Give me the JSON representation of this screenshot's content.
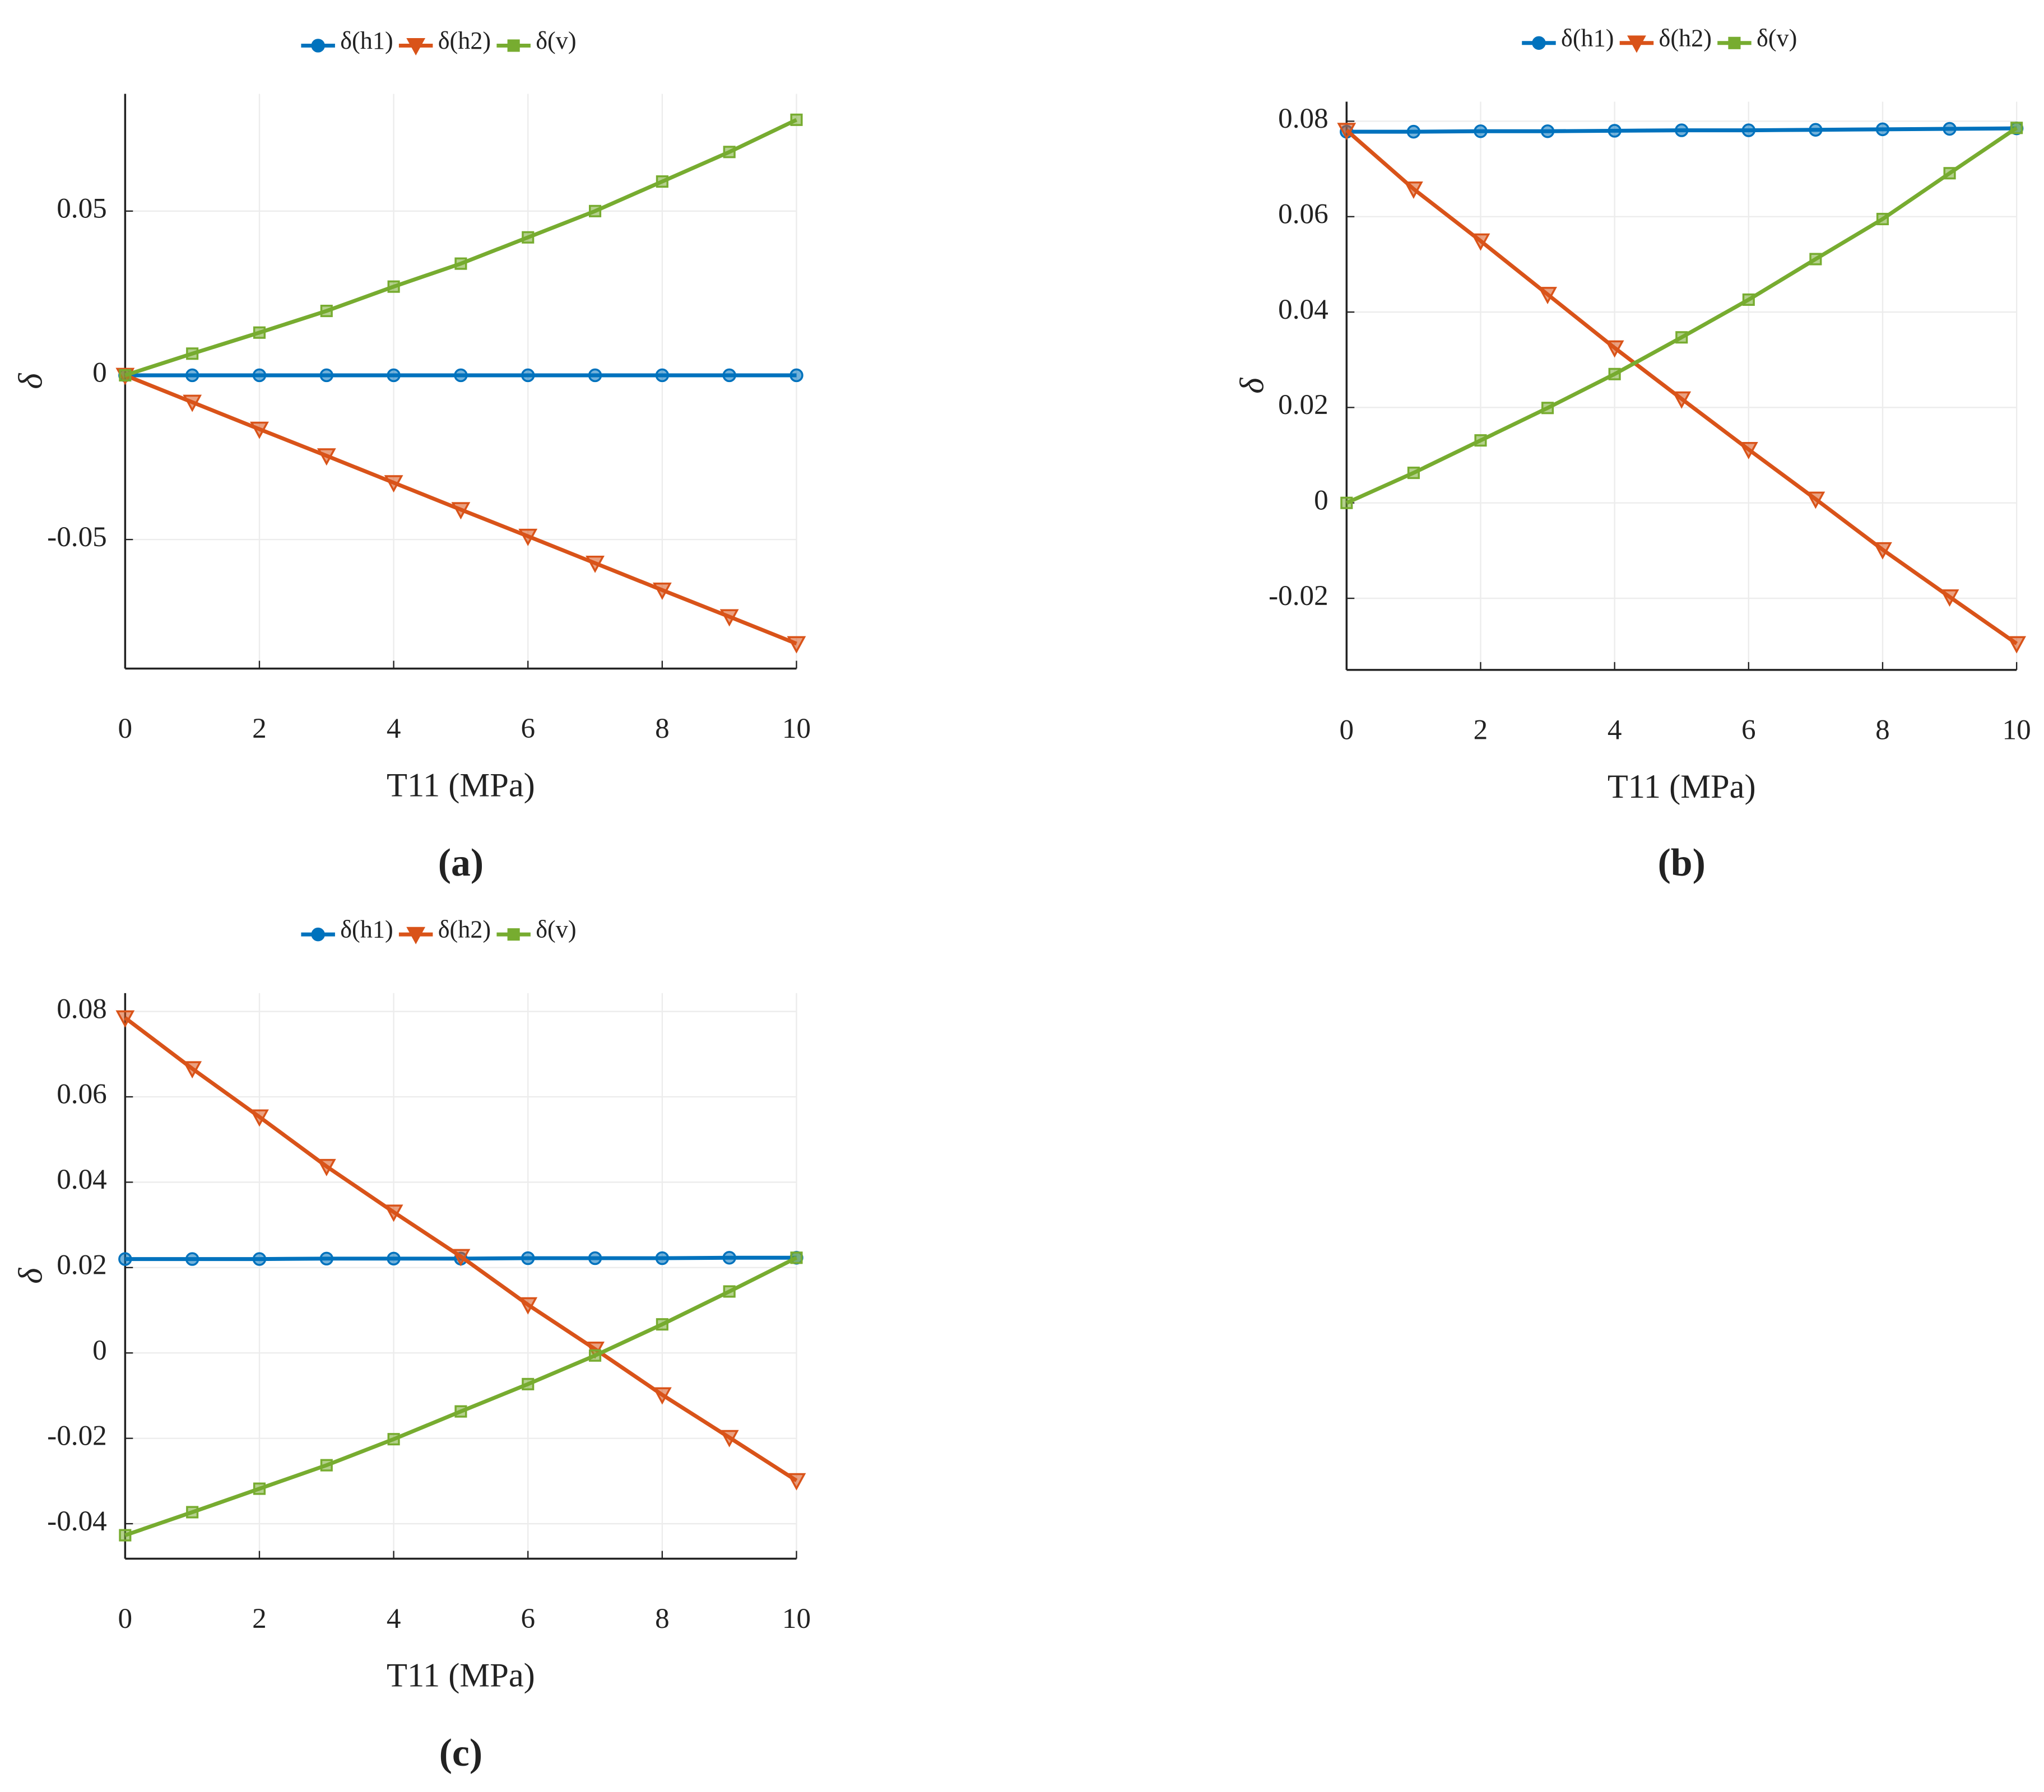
{
  "chart_data": [
    {
      "type": "line",
      "caption": "(a)",
      "xlabel": "T11 (MPa)",
      "ylabel": "δ",
      "x": [
        0,
        1,
        2,
        3,
        4,
        5,
        6,
        7,
        8,
        9,
        10
      ],
      "xlim": [
        0,
        10
      ],
      "xticks": [
        0,
        2,
        4,
        6,
        8,
        10
      ],
      "ylim": [
        -0.0893,
        0.0857
      ],
      "yticks": [
        -0.05,
        0,
        0.05
      ],
      "grid": true,
      "series": [
        {
          "name": "δ(h1)",
          "color": "#0072bd",
          "marker": "circle",
          "values": [
            0,
            0,
            0,
            0,
            0,
            0,
            0,
            0,
            0,
            0,
            0
          ]
        },
        {
          "name": "δ(h2)",
          "color": "#d95319",
          "marker": "triangle-down",
          "values": [
            0,
            -0.0082,
            -0.0164,
            -0.0245,
            -0.0327,
            -0.0409,
            -0.049,
            -0.0572,
            -0.0654,
            -0.0735,
            -0.0817
          ]
        },
        {
          "name": "δ(v)",
          "color": "#77ac30",
          "marker": "square",
          "values": [
            0,
            0.0066,
            0.013,
            0.0196,
            0.027,
            0.034,
            0.042,
            0.05,
            0.059,
            0.068,
            0.0778
          ]
        }
      ]
    },
    {
      "type": "line",
      "caption": "(b)",
      "xlabel": "T11 (MPa)",
      "ylabel": "δ",
      "x": [
        0,
        1,
        2,
        3,
        4,
        5,
        6,
        7,
        8,
        9,
        10
      ],
      "xlim": [
        0,
        10
      ],
      "xticks": [
        0,
        2,
        4,
        6,
        8,
        10
      ],
      "ylim": [
        -0.035,
        0.0841
      ],
      "yticks": [
        -0.02,
        0,
        0.02,
        0.04,
        0.06,
        0.08
      ],
      "grid": true,
      "series": [
        {
          "name": "δ(h1)",
          "color": "#0072bd",
          "marker": "circle",
          "values": [
            0.0778,
            0.0778,
            0.0779,
            0.0779,
            0.078,
            0.0781,
            0.0781,
            0.0782,
            0.0783,
            0.0784,
            0.0785
          ]
        },
        {
          "name": "δ(h2)",
          "color": "#d95319",
          "marker": "triangle-down",
          "values": [
            0.0781,
            0.0658,
            0.0549,
            0.0437,
            0.0325,
            0.0218,
            0.0112,
            0.0008,
            -0.0098,
            -0.0197,
            -0.0295
          ]
        },
        {
          "name": "δ(v)",
          "color": "#77ac30",
          "marker": "square",
          "values": [
            0,
            0.0063,
            0.0131,
            0.0199,
            0.027,
            0.0347,
            0.0426,
            0.0511,
            0.0595,
            0.0691,
            0.0786
          ]
        }
      ]
    },
    {
      "type": "line",
      "caption": "(c)",
      "xlabel": "T11 (MPa)",
      "ylabel": "δ",
      "x": [
        0,
        1,
        2,
        3,
        4,
        5,
        6,
        7,
        8,
        9,
        10
      ],
      "xlim": [
        0,
        10
      ],
      "xticks": [
        0,
        2,
        4,
        6,
        8,
        10
      ],
      "ylim": [
        -0.0482,
        0.0843
      ],
      "yticks": [
        -0.04,
        -0.02,
        0,
        0.02,
        0.04,
        0.06,
        0.08
      ],
      "grid": true,
      "series": [
        {
          "name": "δ(h1)",
          "color": "#0072bd",
          "marker": "circle",
          "values": [
            0.022,
            0.022,
            0.022,
            0.0221,
            0.0221,
            0.0221,
            0.0222,
            0.0222,
            0.0222,
            0.0223,
            0.0223
          ]
        },
        {
          "name": "δ(h2)",
          "color": "#d95319",
          "marker": "triangle-down",
          "values": [
            0.0785,
            0.0666,
            0.0553,
            0.0437,
            0.033,
            0.0226,
            0.0113,
            0.0009,
            -0.0098,
            -0.0198,
            -0.0299
          ]
        },
        {
          "name": "δ(v)",
          "color": "#77ac30",
          "marker": "square",
          "values": [
            -0.0427,
            -0.0373,
            -0.0318,
            -0.0263,
            -0.0202,
            -0.0137,
            -0.0073,
            -0.0006,
            0.0067,
            0.0144,
            0.0223
          ]
        }
      ]
    }
  ]
}
